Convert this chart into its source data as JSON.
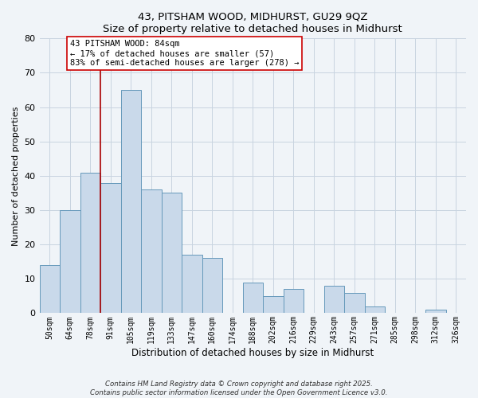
{
  "title": "43, PITSHAM WOOD, MIDHURST, GU29 9QZ",
  "subtitle": "Size of property relative to detached houses in Midhurst",
  "xlabel": "Distribution of detached houses by size in Midhurst",
  "ylabel": "Number of detached properties",
  "bar_labels": [
    "50sqm",
    "64sqm",
    "78sqm",
    "91sqm",
    "105sqm",
    "119sqm",
    "133sqm",
    "147sqm",
    "160sqm",
    "174sqm",
    "188sqm",
    "202sqm",
    "216sqm",
    "229sqm",
    "243sqm",
    "257sqm",
    "271sqm",
    "285sqm",
    "298sqm",
    "312sqm",
    "326sqm"
  ],
  "bar_values": [
    14,
    30,
    41,
    38,
    65,
    36,
    35,
    17,
    16,
    0,
    9,
    5,
    7,
    0,
    8,
    6,
    2,
    0,
    0,
    1,
    0
  ],
  "bar_color": "#c9d9ea",
  "bar_edge_color": "#6699bb",
  "ylim": [
    0,
    80
  ],
  "yticks": [
    0,
    10,
    20,
    30,
    40,
    50,
    60,
    70,
    80
  ],
  "vline_x_idx": 2.5,
  "vline_color": "#aa0000",
  "annotation_title": "43 PITSHAM WOOD: 84sqm",
  "annotation_line1": "← 17% of detached houses are smaller (57)",
  "annotation_line2": "83% of semi-detached houses are larger (278) →",
  "annotation_box_color": "#ffffff",
  "annotation_box_edge": "#cc0000",
  "footer1": "Contains HM Land Registry data © Crown copyright and database right 2025.",
  "footer2": "Contains public sector information licensed under the Open Government Licence v3.0.",
  "bg_color": "#f0f4f8",
  "grid_color": "#c8d4e0"
}
